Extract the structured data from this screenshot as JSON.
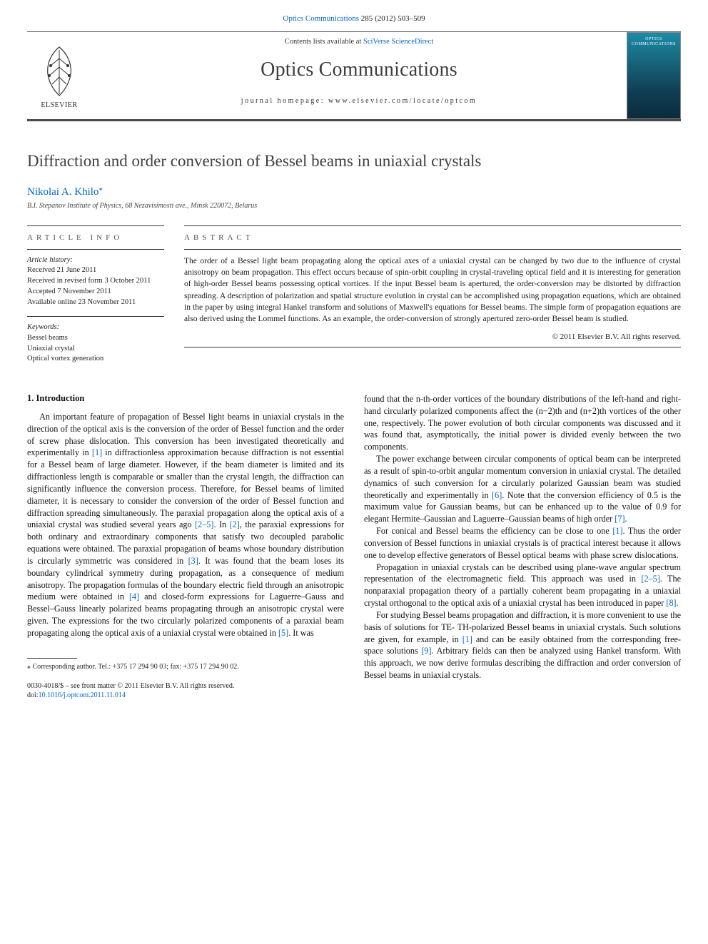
{
  "top_citation": {
    "journal_link_text": "Optics Communications",
    "volume_text": " 285 (2012) 503–509"
  },
  "masthead": {
    "publisher_name": "ELSEVIER",
    "contents_prefix": "Contents lists available at ",
    "contents_link1": "SciVerse",
    "contents_link2": "ScienceDirect",
    "journal_name": "Optics Communications",
    "homepage_prefix": "journal homepage: ",
    "homepage_url": "www.elsevier.com/locate/optcom",
    "cover_small_text": "OPTICS COMMUNICATIONS"
  },
  "title": "Diffraction and order conversion of Bessel beams in uniaxial crystals",
  "author": {
    "name": "Nikolai A. Khilo",
    "marker": "⁎"
  },
  "affiliation": "B.I. Stepanov Institute of Physics, 68 Nezavisimosti ave., Minsk 220072, Belarus",
  "article_info": {
    "heading": "ARTICLE INFO",
    "history_label": "Article history:",
    "history_lines": [
      "Received 21 June 2011",
      "Received in revised form 3 October 2011",
      "Accepted 7 November 2011",
      "Available online 23 November 2011"
    ],
    "keywords_label": "Keywords:",
    "keywords": [
      "Bessel beams",
      "Uniaxial crystal",
      "Optical vortex generation"
    ]
  },
  "abstract": {
    "heading": "ABSTRACT",
    "text": "The order of a Bessel light beam propagating along the optical axes of a uniaxial crystal can be changed by two due to the influence of crystal anisotropy on beam propagation. This effect occurs because of spin-orbit coupling in crystal-traveling optical field and it is interesting for generation of high-order Bessel beams possessing optical vortices. If the input Bessel beam is apertured, the order-conversion may be distorted by diffraction spreading. A description of polarization and spatial structure evolution in crystal can be accomplished using propagation equations, which are obtained in the paper by using integral Hankel transform and solutions of Maxwell's equations for Bessel beams. The simple form of propagation equations are also derived using the Lommel functions. As an example, the order-conversion of strongly apertured zero-order Bessel beam is studied.",
    "copyright": "© 2011 Elsevier B.V. All rights reserved."
  },
  "body": {
    "section_heading": "1. Introduction",
    "left_paragraphs": [
      "An important feature of propagation of Bessel light beams in uniaxial crystals in the direction of the optical axis is the conversion of the order of Bessel function and the order of screw phase dislocation. This conversion has been investigated theoretically and experimentally in [1] in diffractionless approximation because diffraction is not essential for a Bessel beam of large diameter. However, if the beam diameter is limited and its diffractionless length is comparable or smaller than the crystal length, the diffraction can significantly influence the conversion process. Therefore, for Bessel beams of limited diameter, it is necessary to consider the conversion of the order of Bessel function and diffraction spreading simultaneously. The paraxial propagation along the optical axis of a uniaxial crystal was studied several years ago [2–5]. In [2], the paraxial expressions for both ordinary and extraordinary components that satisfy two decoupled parabolic equations were obtained. The paraxial propagation of beams whose boundary distribution is circularly symmetric was considered in [3]. It was found that the beam loses its boundary cylindrical symmetry during propagation, as a consequence of medium anisotropy. The propagation formulas of the boundary electric field through an anisotropic medium were obtained in [4] and closed-form expressions for Laguerre–Gauss and Bessel–Gauss linearly polarized beams propagating through an anisotropic crystal were given. The expressions for the two circularly polarized components of a paraxial beam propagating along the optical axis of a uniaxial crystal were obtained in [5]. It was"
    ],
    "right_paragraphs": [
      "found that the n-th-order vortices of the boundary distributions of the left-hand and right-hand circularly polarized components affect the (n−2)th and (n+2)th vortices of the other one, respectively. The power evolution of both circular components was discussed and it was found that, asymptotically, the initial power is divided evenly between the two components.",
      "The power exchange between circular components of optical beam can be interpreted as a result of spin-to-orbit angular momentum conversion in uniaxial crystal. The detailed dynamics of such conversion for a circularly polarized Gaussian beam was studied theoretically and experimentally in [6]. Note that the conversion efficiency of 0.5 is the maximum value for Gaussian beams, but can be enhanced up to the value of 0.9 for elegant Hermite–Gaussian and Laguerre–Gaussian beams of high order [7].",
      "For conical and Bessel beams the efficiency can be close to one [1]. Thus the order conversion of Bessel functions in uniaxial crystals is of practical interest because it allows one to develop effective generators of Bessel optical beams with phase screw dislocations.",
      "Propagation in uniaxial crystals can be described using plane-wave angular spectrum representation of the electromagnetic field. This approach was used in [2–5]. The nonparaxial propagation theory of a partially coherent beam propagating in a uniaxial crystal orthogonal to the optical axis of a uniaxial crystal has been introduced in paper [8].",
      "For studying Bessel beams propagation and diffraction, it is more convenient to use the basis of solutions for TE- TH-polarized Bessel beams in uniaxial crystals. Such solutions are given, for example, in [1] and can be easily obtained from the corresponding free-space solutions [9]. Arbitrary fields can then be analyzed using Hankel transform. With this approach, we now derive formulas describing the diffraction and order conversion of Bessel beams in uniaxial crystals."
    ]
  },
  "footnote": {
    "marker": "⁎",
    "text": " Corresponding author. Tel.: +375 17 294 90 03; fax: +375 17 294 90 02."
  },
  "bottom": {
    "line1": "0030-4018/$ – see front matter © 2011 Elsevier B.V. All rights reserved.",
    "line2_prefix": "doi:",
    "doi": "10.1016/j.optcom.2011.11.014"
  },
  "ref_links": [
    "[1]",
    "[2–5]",
    "[2]",
    "[3]",
    "[4]",
    "[5]",
    "[6]",
    "[7]",
    "[8]",
    "[9]"
  ],
  "colors": {
    "link": "#0066cc",
    "rule": "#333333",
    "heading_gray": "#404040",
    "cover_top": "#1a8ba8",
    "cover_bottom": "#0b2c3d"
  }
}
